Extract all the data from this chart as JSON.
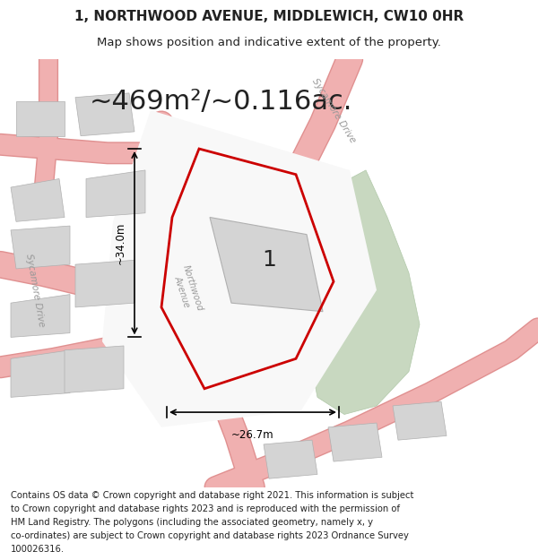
{
  "title_line1": "1, NORTHWOOD AVENUE, MIDDLEWICH, CW10 0HR",
  "title_line2": "Map shows position and indicative extent of the property.",
  "area_text": "~469m²/~0.116ac.",
  "label_number": "1",
  "dim_vertical": "~34.0m",
  "dim_horizontal": "~26.7m",
  "footer_lines": [
    "Contains OS data © Crown copyright and database right 2021. This information is subject",
    "to Crown copyright and database rights 2023 and is reproduced with the permission of",
    "HM Land Registry. The polygons (including the associated geometry, namely x, y",
    "co-ordinates) are subject to Crown copyright and database rights 2023 Ordnance Survey",
    "100026316."
  ],
  "bg_color": "#ffffff",
  "plot_stroke": "#cc0000",
  "building_fill": "#d4d4d4",
  "building_stroke": "#b0b0b0",
  "green_fill": "#c8d8c0",
  "green_stroke": "#b0c8a8",
  "title_fontsize": 11,
  "subtitle_fontsize": 9.5,
  "area_fontsize": 22,
  "label_fontsize": 18,
  "footer_fontsize": 7.2
}
